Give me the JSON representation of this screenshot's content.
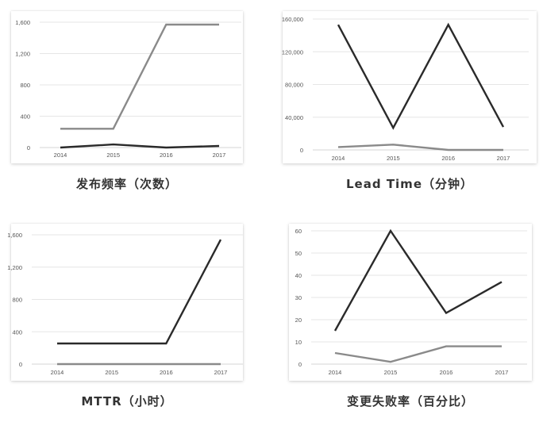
{
  "charts": [
    {
      "caption": "发布频率（次数）",
      "chart_data": {
        "type": "line",
        "categories": [
          "2014",
          "2015",
          "2016",
          "2017"
        ],
        "ylim": [
          0,
          1600
        ],
        "yticks": [
          0,
          400,
          800,
          1200,
          1600
        ],
        "ytick_labels": [
          "0",
          "400",
          "800",
          "1,200",
          "1,600"
        ],
        "grid": true,
        "series": [
          {
            "color": "#8a8a8a",
            "values": [
              240,
              240,
              1570,
              1570
            ]
          },
          {
            "color": "#2a2a2a",
            "values": [
              0,
              40,
              0,
              20
            ]
          }
        ]
      }
    },
    {
      "caption": "Lead Time（分钟）",
      "chart_data": {
        "type": "line",
        "categories": [
          "2014",
          "2015",
          "2016",
          "2017"
        ],
        "ylim": [
          0,
          160000
        ],
        "yticks": [
          0,
          40000,
          80000,
          120000,
          160000
        ],
        "ytick_labels": [
          "0",
          "40,000",
          "80,000",
          "120,000",
          "160,000"
        ],
        "grid": true,
        "series": [
          {
            "color": "#2a2a2a",
            "values": [
              153000,
              27000,
              153000,
              28000
            ]
          },
          {
            "color": "#8a8a8a",
            "values": [
              3500,
              6500,
              0,
              0
            ]
          }
        ]
      }
    },
    {
      "caption": "MTTR（小时）",
      "chart_data": {
        "type": "line",
        "categories": [
          "2014",
          "2015",
          "2016",
          "2017"
        ],
        "ylim": [
          0,
          1600
        ],
        "yticks": [
          0,
          400,
          800,
          1200,
          1600
        ],
        "ytick_labels": [
          "0",
          "400",
          "800",
          "1,200",
          "1,600"
        ],
        "grid": true,
        "series": [
          {
            "color": "#2a2a2a",
            "values": [
              255,
              255,
              255,
              1540
            ]
          },
          {
            "color": "#8a8a8a",
            "values": [
              0,
              0,
              0,
              0
            ]
          }
        ]
      }
    },
    {
      "caption": "变更失败率（百分比）",
      "chart_data": {
        "type": "line",
        "categories": [
          "2014",
          "2015",
          "2016",
          "2017"
        ],
        "ylim": [
          0,
          60
        ],
        "yticks": [
          0,
          10,
          20,
          30,
          40,
          50,
          60
        ],
        "ytick_labels": [
          "0",
          "10",
          "20",
          "30",
          "40",
          "50",
          "60"
        ],
        "grid": true,
        "series": [
          {
            "color": "#2a2a2a",
            "values": [
              15,
              60,
              23,
              37
            ]
          },
          {
            "color": "#8a8a8a",
            "values": [
              5,
              1,
              8,
              8
            ]
          }
        ]
      }
    }
  ]
}
